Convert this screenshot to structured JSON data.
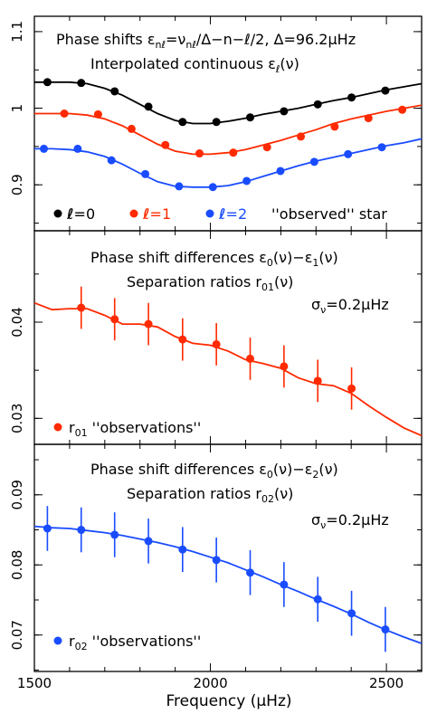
{
  "chart_data": [
    {
      "type": "scatter",
      "panel": "top",
      "title_lines": [
        "Phase shifts ε_nℓ=ν_nℓ/Δ−n−ℓ/2,  Δ=96.2μHz",
        "Interpolated continuous ε_ℓ(ν)"
      ],
      "xlim": [
        1500,
        2600
      ],
      "ylim": [
        0.84,
        1.12
      ],
      "yticks": [
        0.9,
        1,
        1.1
      ],
      "ytick_labels": [
        "0.9",
        "1",
        "1.1"
      ],
      "colors": {
        "l0": "#000000",
        "l1": "#ff2a00",
        "l2": "#1a4cff"
      },
      "series": [
        {
          "name": "ℓ=0",
          "color": "#000000",
          "points": {
            "x": [
              1537,
              1633,
              1728,
              1824,
              1921,
              2017,
              2113,
              2209,
              2305,
              2401,
              2497
            ],
            "y": [
              1.034,
              1.033,
              1.022,
              1.002,
              0.982,
              0.982,
              0.988,
              0.996,
              1.005,
              1.014,
              1.023
            ]
          },
          "curve": {
            "x": [
              1500,
              1550,
              1600,
              1650,
              1700,
              1750,
              1800,
              1850,
              1900,
              1950,
              2000,
              2050,
              2100,
              2150,
              2200,
              2250,
              2300,
              2350,
              2400,
              2450,
              2500,
              2550,
              2600
            ],
            "y": [
              1.034,
              1.034,
              1.034,
              1.032,
              1.026,
              1.017,
              1.005,
              0.993,
              0.984,
              0.98,
              0.98,
              0.983,
              0.987,
              0.992,
              0.996,
              1.0,
              1.005,
              1.01,
              1.014,
              1.019,
              1.024,
              1.028,
              1.032
            ]
          }
        },
        {
          "name": "ℓ=1",
          "color": "#ff2a00",
          "points": {
            "x": [
              1585,
              1681,
              1776,
              1872,
              1969,
              2065,
              2161,
              2257,
              2353,
              2449,
              2545
            ],
            "y": [
              0.993,
              0.992,
              0.973,
              0.952,
              0.941,
              0.942,
              0.949,
              0.963,
              0.976,
              0.987,
              0.998
            ]
          },
          "curve": {
            "x": [
              1500,
              1550,
              1600,
              1650,
              1700,
              1750,
              1800,
              1850,
              1900,
              1950,
              2000,
              2050,
              2100,
              2150,
              2200,
              2250,
              2300,
              2350,
              2400,
              2450,
              2500,
              2550,
              2600
            ],
            "y": [
              0.993,
              0.993,
              0.993,
              0.991,
              0.986,
              0.977,
              0.965,
              0.953,
              0.944,
              0.94,
              0.94,
              0.942,
              0.946,
              0.952,
              0.958,
              0.965,
              0.972,
              0.98,
              0.986,
              0.991,
              0.996,
              1.0,
              1.004
            ]
          }
        },
        {
          "name": "ℓ=2",
          "color": "#1a4cff",
          "points": {
            "x": [
              1527,
              1623,
              1719,
              1815,
              1911,
              2007,
              2103,
              2199,
              2295,
              2391,
              2487
            ],
            "y": [
              0.947,
              0.947,
              0.932,
              0.914,
              0.898,
              0.897,
              0.905,
              0.918,
              0.93,
              0.94,
              0.949
            ]
          },
          "curve": {
            "x": [
              1500,
              1550,
              1600,
              1650,
              1700,
              1750,
              1800,
              1850,
              1900,
              1950,
              2000,
              2050,
              2100,
              2150,
              2200,
              2250,
              2300,
              2350,
              2400,
              2450,
              2500,
              2550,
              2600
            ],
            "y": [
              0.947,
              0.947,
              0.946,
              0.943,
              0.937,
              0.927,
              0.915,
              0.904,
              0.898,
              0.897,
              0.897,
              0.899,
              0.904,
              0.911,
              0.918,
              0.925,
              0.931,
              0.936,
              0.941,
              0.946,
              0.951,
              0.955,
              0.96
            ]
          }
        }
      ],
      "legend": [
        {
          "label": "=0",
          "color": "#000000"
        },
        {
          "label": "=1",
          "color": "#ff2a00"
        },
        {
          "label": "=2",
          "color": "#1a4cff"
        },
        {
          "label": "''observed'' star",
          "color": "#000000"
        }
      ]
    },
    {
      "type": "scatter",
      "panel": "middle",
      "title_lines": [
        "Phase shift differences ε0(ν)−ε1(ν)",
        "Separation ratios r01(ν)"
      ],
      "annotation": "σν=0.2μHz",
      "xlim": [
        1500,
        2600
      ],
      "ylim": [
        0.0273,
        0.0495
      ],
      "yticks": [
        0.03,
        0.04
      ],
      "ytick_labels": [
        "0.03",
        "0.04"
      ],
      "color": "#ff2a00",
      "points": {
        "x": [
          1633,
          1728,
          1824,
          1921,
          2017,
          2113,
          2209,
          2305,
          2401
        ],
        "y": [
          0.0415,
          0.0403,
          0.0398,
          0.0382,
          0.0377,
          0.0362,
          0.0354,
          0.0339,
          0.0331
        ],
        "err": [
          0.0022,
          0.0022,
          0.0022,
          0.0022,
          0.0022,
          0.0022,
          0.0022,
          0.0022,
          0.0022
        ]
      },
      "curve": {
        "x": [
          1500,
          1550,
          1600,
          1650,
          1700,
          1750,
          1800,
          1850,
          1900,
          1950,
          2000,
          2050,
          2100,
          2150,
          2200,
          2250,
          2300,
          2350,
          2400,
          2450,
          2500,
          2550,
          2600
        ],
        "y": [
          0.042,
          0.0413,
          0.0414,
          0.0414,
          0.0407,
          0.0398,
          0.0398,
          0.0395,
          0.0385,
          0.0378,
          0.0376,
          0.037,
          0.0361,
          0.0357,
          0.0352,
          0.0342,
          0.0336,
          0.0334,
          0.0326,
          0.0313,
          0.0301,
          0.029,
          0.0282
        ]
      },
      "legend": [
        "r01 ''observations''"
      ]
    },
    {
      "type": "scatter",
      "panel": "bottom",
      "title_lines": [
        "Phase shift differences ε0(ν)−ε2(ν)",
        "Separation ratios r02(ν)"
      ],
      "annotation": "σν=0.2μHz",
      "xlim": [
        1500,
        2600
      ],
      "xticks": [
        1500,
        2000,
        2500
      ],
      "xtick_labels": [
        "1500",
        "2000",
        "2500"
      ],
      "xlabel": "Frequency (μHz)",
      "ylim": [
        0.0648,
        0.0972
      ],
      "yticks": [
        0.07,
        0.08,
        0.09
      ],
      "ytick_labels": [
        "0.07",
        "0.08",
        "0.09"
      ],
      "color": "#1a4cff",
      "points": {
        "x": [
          1537,
          1633,
          1728,
          1824,
          1921,
          2017,
          2113,
          2209,
          2305,
          2401,
          2497
        ],
        "y": [
          0.0852,
          0.085,
          0.0843,
          0.0834,
          0.0822,
          0.0807,
          0.0789,
          0.0772,
          0.0751,
          0.0731,
          0.0708
        ],
        "err": [
          0.0032,
          0.0032,
          0.0032,
          0.0032,
          0.0032,
          0.0032,
          0.0032,
          0.0032,
          0.0032,
          0.0032,
          0.0032
        ]
      },
      "curve": {
        "x": [
          1500,
          1550,
          1600,
          1650,
          1700,
          1750,
          1800,
          1850,
          1900,
          1950,
          2000,
          2050,
          2100,
          2150,
          2200,
          2250,
          2300,
          2350,
          2400,
          2450,
          2500,
          2550,
          2600
        ],
        "y": [
          0.0855,
          0.0853,
          0.0852,
          0.0849,
          0.0846,
          0.0842,
          0.0837,
          0.0832,
          0.0826,
          0.0819,
          0.0811,
          0.0803,
          0.0793,
          0.0783,
          0.0772,
          0.0762,
          0.0751,
          0.0741,
          0.073,
          0.0718,
          0.0707,
          0.0697,
          0.0688
        ]
      },
      "legend": [
        "r02 ''observations''"
      ]
    }
  ]
}
